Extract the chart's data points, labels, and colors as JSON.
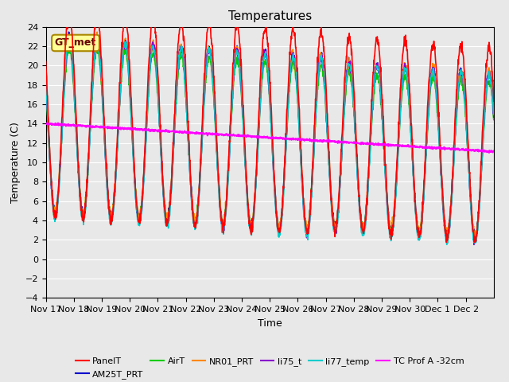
{
  "title": "Temperatures",
  "xlabel": "Time",
  "ylabel": "Temperature (C)",
  "ylim": [
    -4,
    24
  ],
  "yticks": [
    -4,
    -2,
    0,
    2,
    4,
    6,
    8,
    10,
    12,
    14,
    16,
    18,
    20,
    22,
    24
  ],
  "bg_color": "#e8e8e8",
  "plot_bg_color": "#e8e8e8",
  "series": {
    "PanelT": {
      "color": "#ff0000",
      "lw": 1.2
    },
    "AM25T_PRT": {
      "color": "#0000cc",
      "lw": 1.2
    },
    "AirT": {
      "color": "#00cc00",
      "lw": 1.2
    },
    "NR01_PRT": {
      "color": "#ff8800",
      "lw": 1.2
    },
    "li75_t": {
      "color": "#8800cc",
      "lw": 1.2
    },
    "li77_temp": {
      "color": "#00cccc",
      "lw": 1.2
    },
    "TC Prof A -32cm": {
      "color": "#ff00ff",
      "lw": 1.5
    }
  },
  "annotation_text": "GT_met",
  "annotation_bbox": {
    "facecolor": "#ffff99",
    "edgecolor": "#aa8800"
  },
  "x_tick_labels": [
    "Nov 17",
    "Nov 18",
    "Nov 19",
    "Nov 20",
    "Nov 21",
    "Nov 22",
    "Nov 23",
    "Nov 24",
    "Nov 25",
    "Nov 26",
    "Nov 27",
    "Nov 28",
    "Nov 29",
    "Nov 30",
    "Dec 1",
    "Dec 2"
  ],
  "num_days": 16
}
